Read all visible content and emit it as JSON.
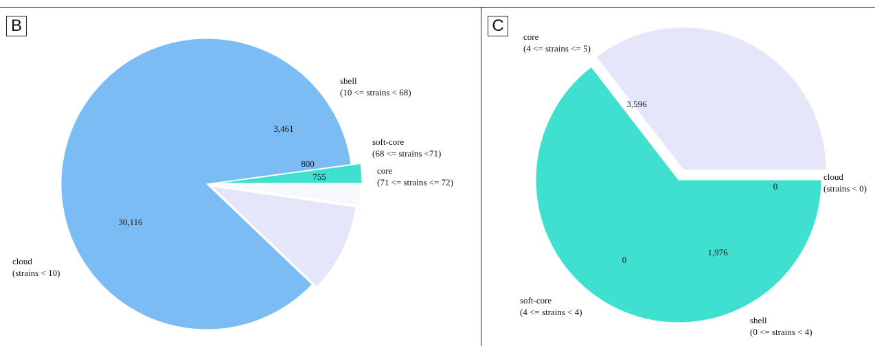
{
  "chart_data": [
    {
      "type": "pie",
      "panel_label": "B",
      "slices": [
        {
          "label": "core",
          "range": "(71 <= strains <= 72)",
          "value": 755,
          "value_label": "755",
          "color": "#40e0d0"
        },
        {
          "label": "cloud",
          "range": "(strains < 10)",
          "value": 30116,
          "value_label": "30,116",
          "color": "#7bbcf5"
        },
        {
          "label": "shell",
          "range": "(10 <= strains < 68)",
          "value": 3461,
          "value_label": "3,461",
          "color": "#e6e6fa"
        },
        {
          "label": "soft-core",
          "range": "(68 <= strains <71)",
          "value": 800,
          "value_label": "800",
          "color": "#f8f8ff"
        }
      ]
    },
    {
      "type": "pie",
      "panel_label": "C",
      "slices": [
        {
          "label": "cloud",
          "range": "(strains < 0)",
          "value": 0,
          "value_label": "0",
          "color": "#7bbcf5"
        },
        {
          "label": "shell",
          "range": "(0 <= strains < 4)",
          "value": 1976,
          "value_label": "1,976",
          "color": "#e6e6fa"
        },
        {
          "label": "soft-core",
          "range": "(4 <= strains < 4)",
          "value": 0,
          "value_label": "0",
          "color": "#f8f8ff"
        },
        {
          "label": "core",
          "range": "(4 <= strains <= 5)",
          "value": 3596,
          "value_label": "3,596",
          "color": "#40e0d0"
        }
      ]
    }
  ]
}
